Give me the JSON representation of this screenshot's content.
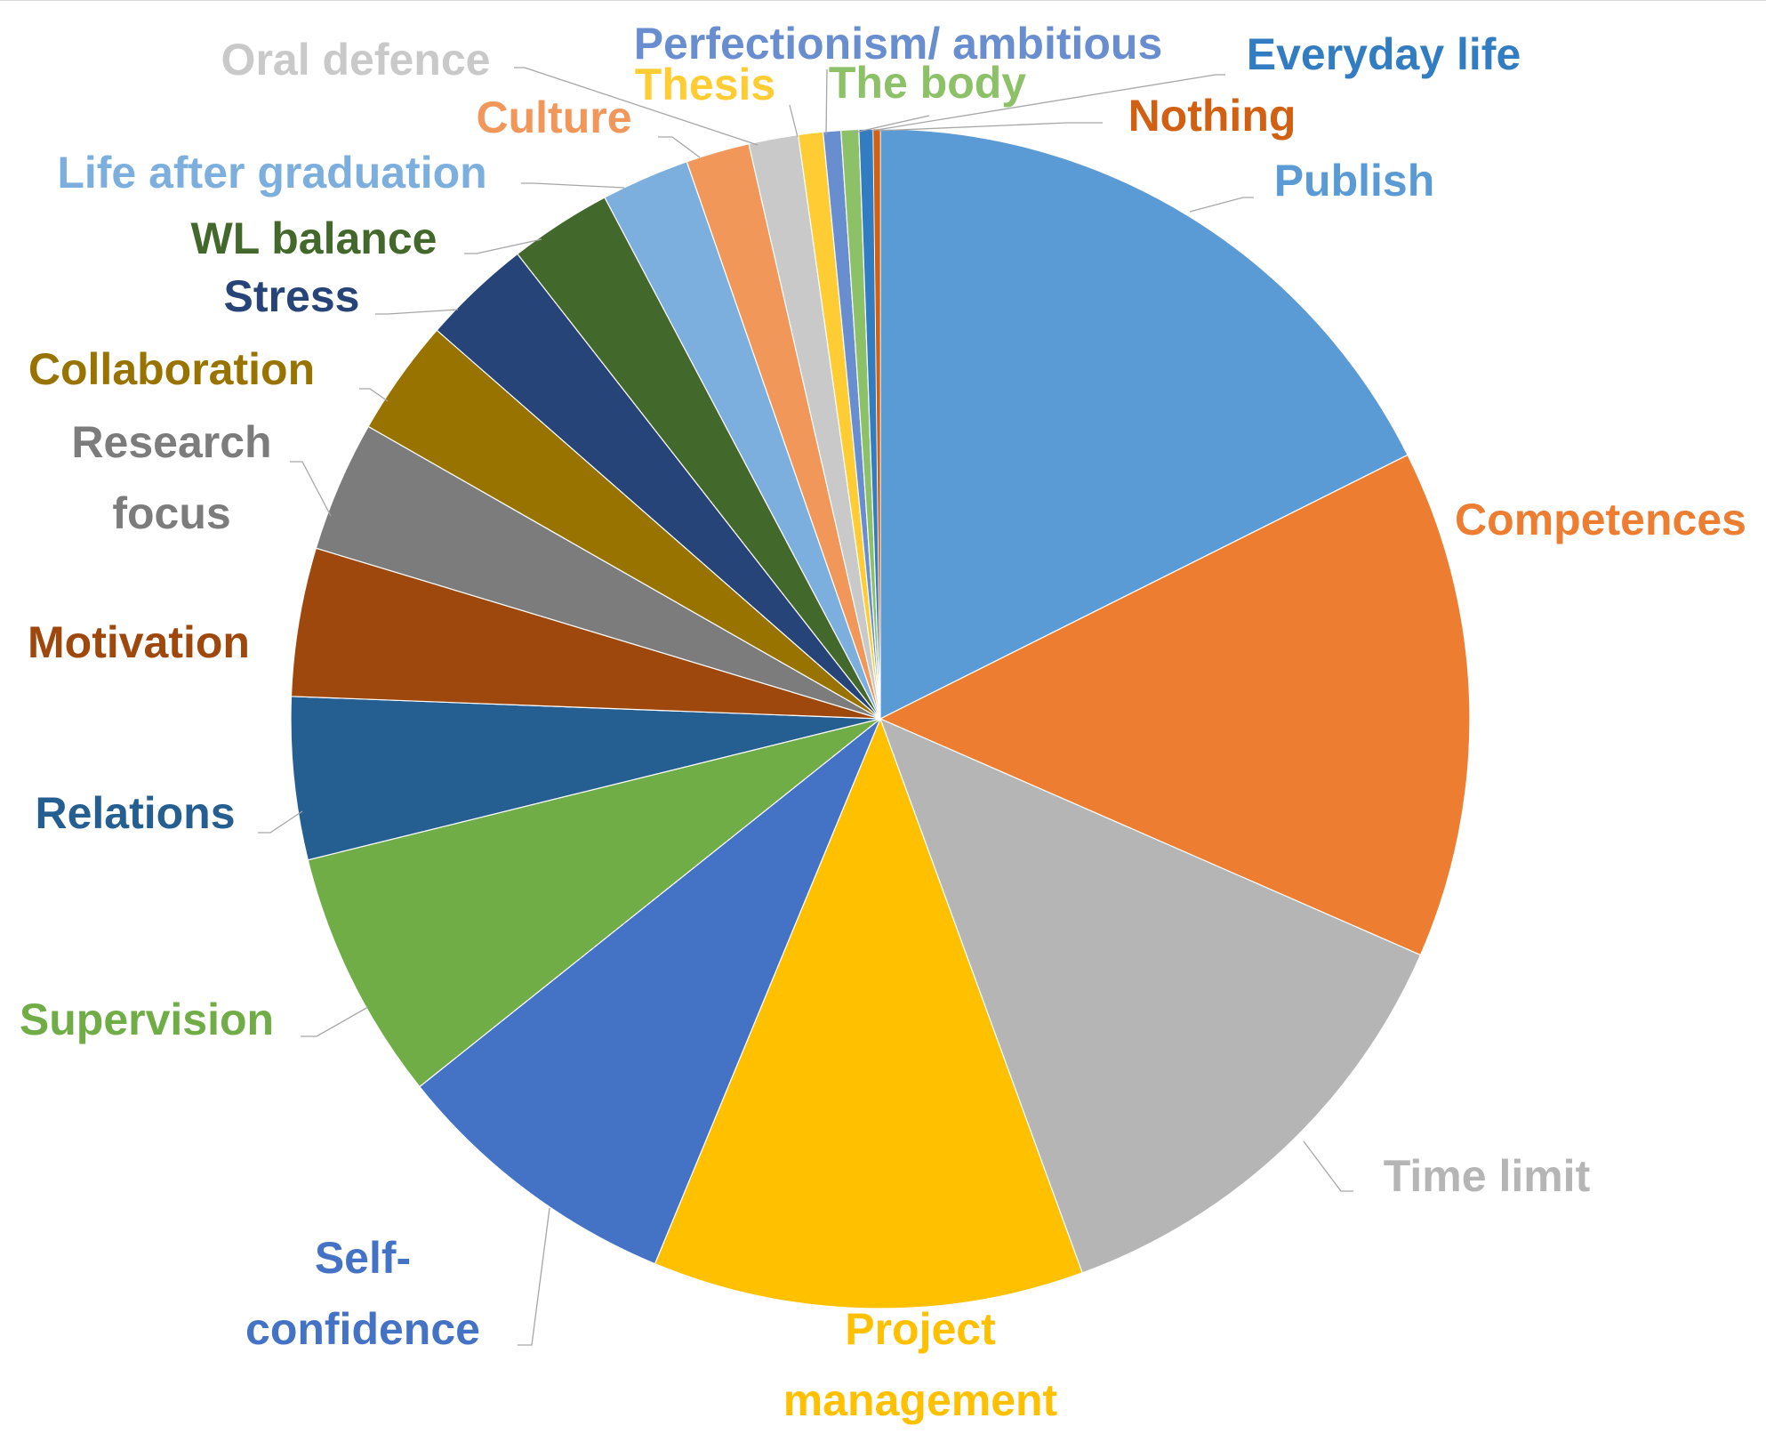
{
  "chart_data": {
    "type": "pie",
    "title": "",
    "slices": [
      {
        "label": "Publish",
        "value": 18.2,
        "color": "#5B9BD5"
      },
      {
        "label": "Competences",
        "value": 14.4,
        "color": "#ED7D31"
      },
      {
        "label": "Time limit",
        "value": 13.3,
        "color": "#B5B5B5"
      },
      {
        "label": "Project management",
        "value": 12.2,
        "color": "#FFC000"
      },
      {
        "label": "Self-confidence",
        "value": 8.3,
        "color": "#4472C4"
      },
      {
        "label": "Supervision",
        "value": 7.1,
        "color": "#70AD47"
      },
      {
        "label": "Relations",
        "value": 4.6,
        "color": "#255E91"
      },
      {
        "label": "Motivation",
        "value": 4.2,
        "color": "#9E480E"
      },
      {
        "label": "Research focus",
        "value": 3.7,
        "color": "#7C7C7C"
      },
      {
        "label": "Collaboration",
        "value": 3.3,
        "color": "#997300"
      },
      {
        "label": "Stress",
        "value": 3.1,
        "color": "#264478"
      },
      {
        "label": "WL balance",
        "value": 2.9,
        "color": "#43682B"
      },
      {
        "label": "Life after graduation",
        "value": 2.5,
        "color": "#7CAFDD"
      },
      {
        "label": "Culture",
        "value": 1.8,
        "color": "#F1975A"
      },
      {
        "label": "Oral defence",
        "value": 1.4,
        "color": "#C9C9C9"
      },
      {
        "label": "Thesis",
        "value": 0.7,
        "color": "#FFCD33"
      },
      {
        "label": "Perfectionism/ ambitious",
        "value": 0.5,
        "color": "#698ED0"
      },
      {
        "label": "The body",
        "value": 0.5,
        "color": "#8CC168"
      },
      {
        "label": "Everyday life",
        "value": 0.4,
        "color": "#327DC2"
      },
      {
        "label": "Nothing",
        "value": 0.2,
        "color": "#D26012"
      }
    ]
  }
}
